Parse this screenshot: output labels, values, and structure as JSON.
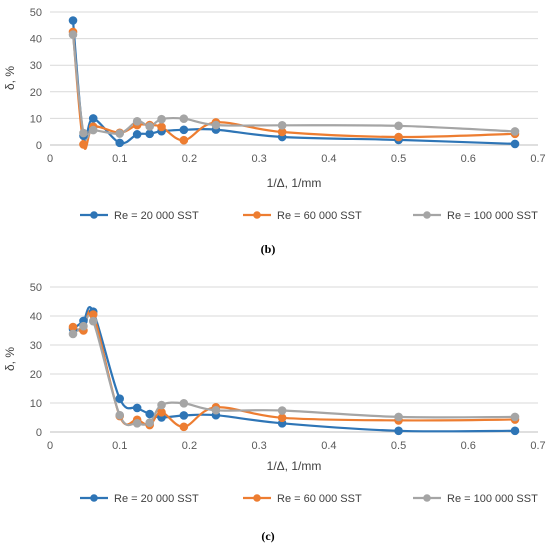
{
  "colors": {
    "series_1": "#2e75b6",
    "series_2": "#ed7d31",
    "series_3": "#a5a5a5",
    "grid": "#d9d9d9",
    "axis": "#bfbfbf"
  },
  "chart_data": [
    {
      "type": "line",
      "caption": "(b)",
      "xlabel": "1/Δ, 1/mm",
      "ylabel": "δ, %",
      "xlim": [
        0,
        0.7
      ],
      "ylim": [
        0,
        50
      ],
      "xticks": [
        "0",
        "0.1",
        "0.2",
        "0.3",
        "0.4",
        "0.5",
        "0.6",
        "0.7"
      ],
      "yticks": [
        "0",
        "10",
        "20",
        "30",
        "40",
        "50"
      ],
      "grid": "horizontal",
      "smooth": true,
      "legend": "bottom",
      "series": [
        {
          "name": "Re = 20 000 SST",
          "x": [
            0.033,
            0.048,
            0.062,
            0.1,
            0.125,
            0.143,
            0.16,
            0.192,
            0.238,
            0.333,
            0.5,
            0.667
          ],
          "y": [
            46.8,
            3.5,
            10.0,
            0.8,
            4.0,
            4.2,
            5.2,
            5.7,
            5.8,
            3.0,
            1.9,
            0.4
          ]
        },
        {
          "name": "Re = 60 000 SST",
          "x": [
            0.033,
            0.048,
            0.062,
            0.1,
            0.125,
            0.143,
            0.16,
            0.192,
            0.238,
            0.333,
            0.5,
            0.667
          ],
          "y": [
            42.5,
            0.2,
            6.9,
            4.6,
            7.5,
            7.5,
            6.8,
            1.8,
            8.5,
            4.9,
            3.0,
            4.2
          ]
        },
        {
          "name": "Re = 100 000 SST",
          "x": [
            0.033,
            0.048,
            0.062,
            0.1,
            0.125,
            0.143,
            0.16,
            0.192,
            0.238,
            0.333,
            0.5,
            0.667
          ],
          "y": [
            41.5,
            4.5,
            5.6,
            4.3,
            8.9,
            7.0,
            9.7,
            9.9,
            7.5,
            7.4,
            7.2,
            5.1
          ]
        }
      ]
    },
    {
      "type": "line",
      "caption": "(c)",
      "xlabel": "1/Δ, 1/mm",
      "ylabel": "δ, %",
      "xlim": [
        0,
        0.7
      ],
      "ylim": [
        0,
        50
      ],
      "xticks": [
        "0",
        "0.1",
        "0.2",
        "0.3",
        "0.4",
        "0.5",
        "0.6",
        "0.7"
      ],
      "yticks": [
        "0",
        "10",
        "20",
        "30",
        "40",
        "50"
      ],
      "grid": "horizontal",
      "smooth": true,
      "legend": "bottom",
      "series": [
        {
          "name": "Re = 20 000 SST",
          "x": [
            0.033,
            0.048,
            0.062,
            0.1,
            0.125,
            0.143,
            0.16,
            0.192,
            0.238,
            0.333,
            0.5,
            0.667
          ],
          "y": [
            35.5,
            38.3,
            41.5,
            11.5,
            8.3,
            6.2,
            5.0,
            5.7,
            5.8,
            3.0,
            0.4,
            0.4
          ]
        },
        {
          "name": "Re = 60 000 SST",
          "x": [
            0.033,
            0.048,
            0.062,
            0.1,
            0.125,
            0.143,
            0.16,
            0.192,
            0.238,
            0.333,
            0.5,
            0.667
          ],
          "y": [
            36.2,
            35.0,
            40.5,
            5.5,
            4.2,
            2.4,
            6.8,
            1.8,
            8.5,
            4.9,
            4.0,
            4.3
          ]
        },
        {
          "name": "Re = 100 000 SST",
          "x": [
            0.033,
            0.048,
            0.062,
            0.1,
            0.125,
            0.143,
            0.16,
            0.192,
            0.238,
            0.333,
            0.5,
            0.667
          ],
          "y": [
            33.8,
            36.5,
            38.2,
            5.8,
            3.0,
            3.2,
            9.3,
            9.9,
            7.5,
            7.4,
            5.2,
            5.2
          ]
        }
      ]
    }
  ]
}
